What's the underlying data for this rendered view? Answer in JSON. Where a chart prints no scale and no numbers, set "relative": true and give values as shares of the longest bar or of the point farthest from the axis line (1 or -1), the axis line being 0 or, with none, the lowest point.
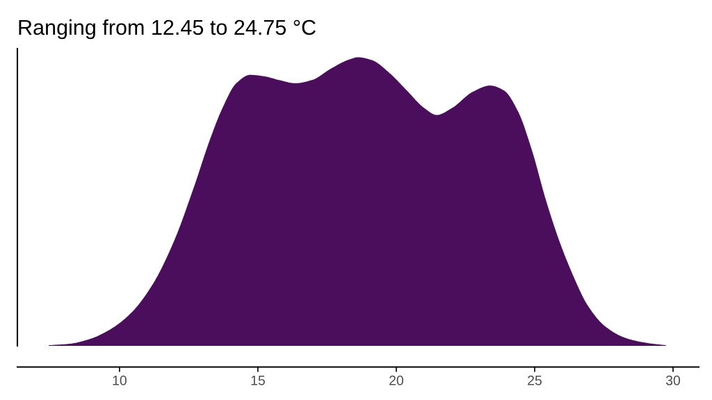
{
  "chart_data": {
    "type": "area",
    "title": "Ranging from 12.45 to 24.75 °C",
    "relative": true,
    "x": [
      7.44,
      8.19,
      8.94,
      9.7,
      10.45,
      11.21,
      11.96,
      12.71,
      13.22,
      13.72,
      14.22,
      14.72,
      15.23,
      15.73,
      16.36,
      16.98,
      17.61,
      18.24,
      18.62,
      19.12,
      19.75,
      20.38,
      21.01,
      21.46,
      22.01,
      22.76,
      23.39,
      23.89,
      24.4,
      24.9,
      25.4,
      25.9,
      26.41,
      26.91,
      27.54,
      28.29,
      29.05,
      29.75
    ],
    "series": [
      {
        "color": "#4a0e5c",
        "values": [
          0.002,
          0.007,
          0.024,
          0.059,
          0.117,
          0.215,
          0.361,
          0.556,
          0.702,
          0.824,
          0.91,
          0.939,
          0.934,
          0.922,
          0.91,
          0.922,
          0.959,
          0.99,
          1.0,
          0.99,
          0.946,
          0.885,
          0.824,
          0.8,
          0.824,
          0.88,
          0.902,
          0.885,
          0.812,
          0.678,
          0.507,
          0.361,
          0.239,
          0.141,
          0.068,
          0.027,
          0.01,
          0.002
        ]
      }
    ],
    "xlim": [
      6.31,
      30.93
    ],
    "xticks": [
      10,
      15,
      20,
      25,
      30
    ],
    "grid": false,
    "legend": false
  }
}
